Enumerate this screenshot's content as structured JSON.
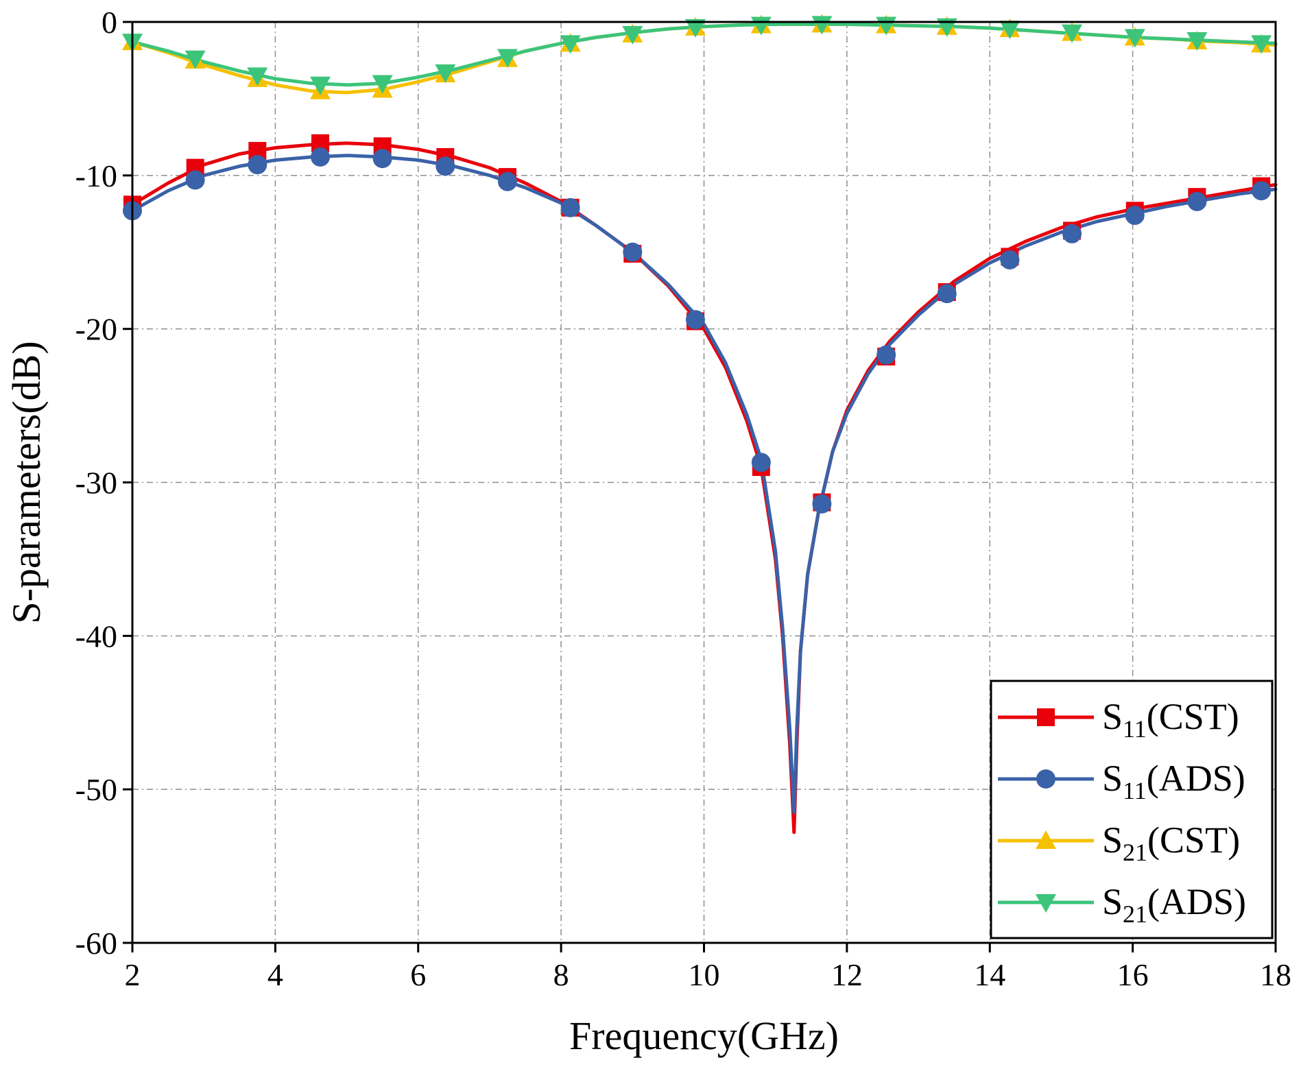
{
  "chart_data": {
    "type": "line",
    "title": "",
    "xlabel": "Frequency(GHz)",
    "ylabel": "S-parameters(dB)",
    "xlim": [
      2,
      18
    ],
    "ylim": [
      -60,
      0
    ],
    "xticks": [
      2,
      4,
      6,
      8,
      10,
      12,
      14,
      16,
      18
    ],
    "yticks": [
      0,
      -10,
      -20,
      -30,
      -40,
      -50,
      -60
    ],
    "xtick_labels": [
      "2",
      "4",
      "6",
      "8",
      "10",
      "12",
      "14",
      "16",
      "18"
    ],
    "ytick_labels": [
      "0",
      "-10",
      "-20",
      "-30",
      "-40",
      "-50",
      "-60"
    ],
    "grid": true,
    "legend_position": "bottom-right",
    "series": [
      {
        "name": "S11(CST)",
        "label_main": "S",
        "label_sub": "11",
        "label_tail": "(CST)",
        "color": "#e8000b",
        "marker": "square",
        "x": [
          2.0,
          2.5,
          3.0,
          3.5,
          4.0,
          4.5,
          5.0,
          5.5,
          6.0,
          6.5,
          7.0,
          7.5,
          8.0,
          8.5,
          9.0,
          9.5,
          10.0,
          10.3,
          10.6,
          10.8,
          11.0,
          11.1,
          11.2,
          11.26,
          11.3,
          11.35,
          11.45,
          11.6,
          11.8,
          12.0,
          12.3,
          12.6,
          13.0,
          13.5,
          14.0,
          14.5,
          15.0,
          15.5,
          16.0,
          16.5,
          17.0,
          17.5,
          18.0
        ],
        "y": [
          -11.9,
          -10.5,
          -9.3,
          -8.6,
          -8.2,
          -8.0,
          -7.9,
          -8.0,
          -8.3,
          -8.8,
          -9.5,
          -10.5,
          -11.7,
          -13.3,
          -15.0,
          -17.2,
          -20.0,
          -22.5,
          -26.0,
          -29.0,
          -35.0,
          -40.0,
          -47.0,
          -52.8,
          -47.0,
          -41.0,
          -36.0,
          -32.0,
          -28.0,
          -25.3,
          -22.7,
          -20.8,
          -18.9,
          -16.9,
          -15.4,
          -14.3,
          -13.4,
          -12.7,
          -12.2,
          -11.8,
          -11.4,
          -11.0,
          -10.6
        ],
        "marker_x": [
          2.0,
          2.88,
          3.75,
          4.63,
          5.5,
          6.38,
          7.25,
          8.13,
          9.0,
          9.88,
          10.8,
          11.65,
          12.55,
          13.4,
          14.28,
          15.15,
          16.03,
          16.9,
          17.8
        ],
        "marker_y": [
          -11.9,
          -9.5,
          -8.4,
          -7.9,
          -8.1,
          -8.8,
          -10.1,
          -12.1,
          -15.1,
          -19.5,
          -29.0,
          -31.3,
          -21.8,
          -17.6,
          -15.3,
          -13.6,
          -12.3,
          -11.4,
          -10.7
        ]
      },
      {
        "name": "S11(ADS)",
        "label_main": "S",
        "label_sub": "11",
        "label_tail": "(ADS)",
        "color": "#3a62a8",
        "marker": "circle",
        "x": [
          2.0,
          2.5,
          3.0,
          3.5,
          4.0,
          4.5,
          5.0,
          5.5,
          6.0,
          6.5,
          7.0,
          7.5,
          8.0,
          8.5,
          9.0,
          9.5,
          10.0,
          10.3,
          10.6,
          10.8,
          11.0,
          11.1,
          11.2,
          11.26,
          11.3,
          11.35,
          11.45,
          11.6,
          11.8,
          12.0,
          12.3,
          12.6,
          13.0,
          13.5,
          14.0,
          14.5,
          15.0,
          15.5,
          16.0,
          16.5,
          17.0,
          17.5,
          18.0
        ],
        "y": [
          -12.3,
          -11.0,
          -10.0,
          -9.4,
          -9.0,
          -8.8,
          -8.7,
          -8.8,
          -9.0,
          -9.4,
          -10.0,
          -10.8,
          -11.8,
          -13.3,
          -15.0,
          -17.1,
          -19.7,
          -22.2,
          -25.6,
          -28.5,
          -34.5,
          -39.5,
          -46.0,
          -51.5,
          -46.0,
          -41.0,
          -36.0,
          -32.0,
          -28.0,
          -25.5,
          -22.9,
          -21.0,
          -19.1,
          -17.1,
          -15.7,
          -14.6,
          -13.7,
          -13.0,
          -12.5,
          -12.0,
          -11.6,
          -11.2,
          -10.9
        ],
        "marker_x": [
          2.0,
          2.88,
          3.75,
          4.63,
          5.5,
          6.38,
          7.25,
          8.13,
          9.0,
          9.88,
          10.8,
          11.65,
          12.55,
          13.4,
          14.28,
          15.15,
          16.03,
          16.9,
          17.8
        ],
        "marker_y": [
          -12.3,
          -10.3,
          -9.3,
          -8.8,
          -8.9,
          -9.4,
          -10.4,
          -12.1,
          -15.0,
          -19.4,
          -28.7,
          -31.4,
          -21.7,
          -17.7,
          -15.5,
          -13.8,
          -12.6,
          -11.7,
          -11.0
        ]
      },
      {
        "name": "S21(CST)",
        "label_main": "S",
        "label_sub": "21",
        "label_tail": "(CST)",
        "color": "#f5c000",
        "marker": "triangle-up",
        "x": [
          2.0,
          2.5,
          3.0,
          3.5,
          4.0,
          4.5,
          5.0,
          5.5,
          6.0,
          6.5,
          7.0,
          7.5,
          8.0,
          8.5,
          9.0,
          9.5,
          10.0,
          10.5,
          11.0,
          11.5,
          12.0,
          12.5,
          13.0,
          13.5,
          14.0,
          14.5,
          15.0,
          15.5,
          16.0,
          16.5,
          17.0,
          17.5,
          18.0
        ],
        "y": [
          -1.3,
          -2.0,
          -2.8,
          -3.5,
          -4.1,
          -4.5,
          -4.6,
          -4.4,
          -3.9,
          -3.3,
          -2.6,
          -1.9,
          -1.4,
          -1.0,
          -0.7,
          -0.45,
          -0.3,
          -0.2,
          -0.15,
          -0.15,
          -0.15,
          -0.2,
          -0.25,
          -0.3,
          -0.4,
          -0.55,
          -0.7,
          -0.85,
          -1.0,
          -1.1,
          -1.25,
          -1.35,
          -1.5
        ],
        "marker_x": [
          2.0,
          2.88,
          3.75,
          4.63,
          5.5,
          6.38,
          7.25,
          8.13,
          9.0,
          9.88,
          10.8,
          11.65,
          12.55,
          13.4,
          14.28,
          15.15,
          16.03,
          16.9,
          17.8
        ],
        "marker_y": [
          -1.3,
          -2.5,
          -3.7,
          -4.5,
          -4.4,
          -3.4,
          -2.4,
          -1.4,
          -0.8,
          -0.35,
          -0.2,
          -0.15,
          -0.2,
          -0.3,
          -0.45,
          -0.7,
          -1.0,
          -1.25,
          -1.45
        ]
      },
      {
        "name": "S21(ADS)",
        "label_main": "S",
        "label_sub": "21",
        "label_tail": "(ADS)",
        "color": "#3cc47a",
        "marker": "triangle-down",
        "x": [
          2.0,
          2.5,
          3.0,
          3.5,
          4.0,
          4.5,
          5.0,
          5.5,
          6.0,
          6.5,
          7.0,
          7.5,
          8.0,
          8.5,
          9.0,
          9.5,
          10.0,
          10.5,
          11.0,
          11.5,
          12.0,
          12.5,
          13.0,
          13.5,
          14.0,
          14.5,
          15.0,
          15.5,
          16.0,
          16.5,
          17.0,
          17.5,
          18.0
        ],
        "y": [
          -1.3,
          -1.9,
          -2.6,
          -3.2,
          -3.7,
          -4.0,
          -4.1,
          -4.0,
          -3.6,
          -3.1,
          -2.5,
          -1.9,
          -1.4,
          -1.0,
          -0.7,
          -0.45,
          -0.3,
          -0.2,
          -0.15,
          -0.15,
          -0.15,
          -0.2,
          -0.25,
          -0.3,
          -0.4,
          -0.55,
          -0.7,
          -0.85,
          -1.0,
          -1.1,
          -1.2,
          -1.3,
          -1.4
        ],
        "marker_x": [
          2.0,
          2.88,
          3.75,
          4.63,
          5.5,
          6.38,
          7.25,
          8.13,
          9.0,
          9.88,
          10.8,
          11.65,
          12.55,
          13.4,
          14.28,
          15.15,
          16.03,
          16.9,
          17.8
        ],
        "marker_y": [
          -1.3,
          -2.4,
          -3.5,
          -4.1,
          -4.0,
          -3.3,
          -2.3,
          -1.4,
          -0.8,
          -0.35,
          -0.2,
          -0.15,
          -0.2,
          -0.3,
          -0.45,
          -0.7,
          -1.0,
          -1.2,
          -1.4
        ]
      }
    ]
  }
}
